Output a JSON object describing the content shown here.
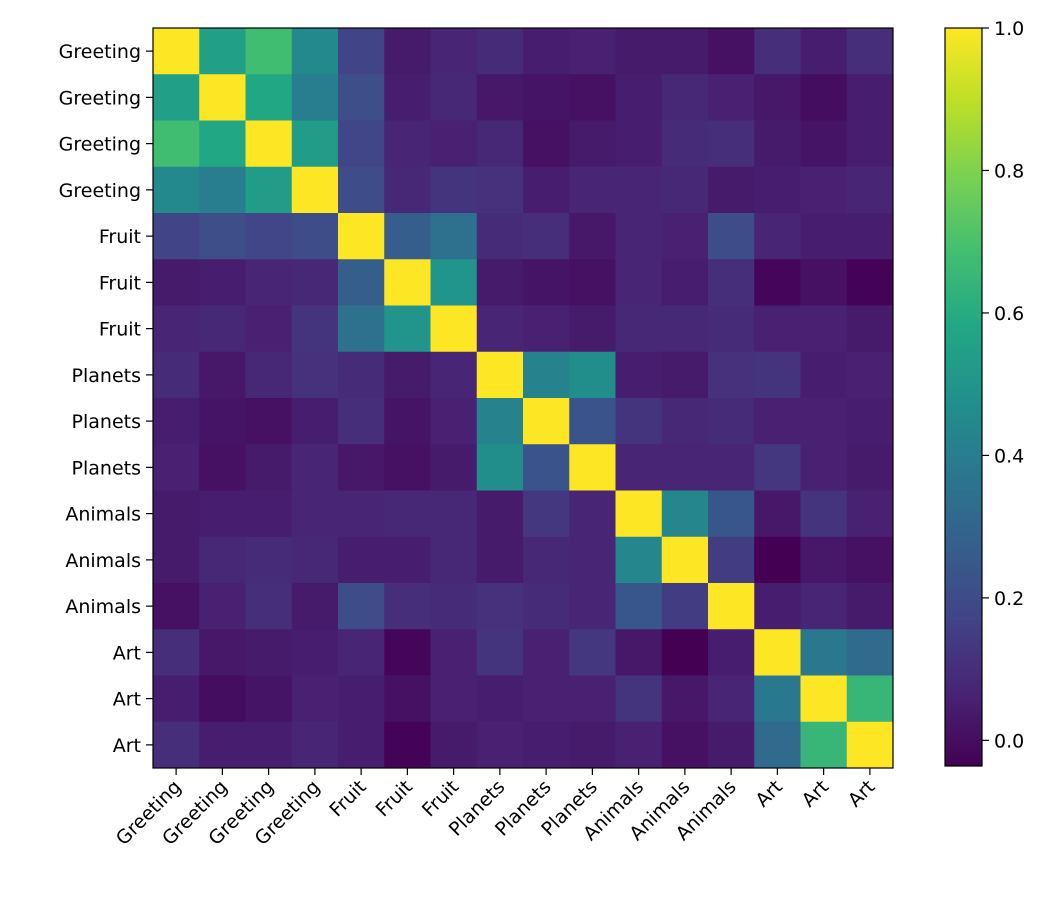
{
  "chart_data": {
    "type": "heatmap",
    "title": "",
    "xlabel": "",
    "ylabel": "",
    "labels": [
      "Greeting",
      "Greeting",
      "Greeting",
      "Greeting",
      "Fruit",
      "Fruit",
      "Fruit",
      "Planets",
      "Planets",
      "Planets",
      "Animals",
      "Animals",
      "Animals",
      "Art",
      "Art",
      "Art"
    ],
    "colormap": "viridis",
    "vmin": -0.036,
    "vmax": 1.0,
    "colorbar_ticks": [
      "0.0",
      "0.2",
      "0.4",
      "0.6",
      "0.8",
      "1.0"
    ],
    "colorbar_tick_values": [
      0.0,
      0.2,
      0.4,
      0.6,
      0.8,
      1.0
    ],
    "matrix": [
      [
        1.0,
        0.55,
        0.68,
        0.45,
        0.17,
        0.04,
        0.07,
        0.09,
        0.05,
        0.06,
        0.04,
        0.04,
        0.01,
        0.1,
        0.05,
        0.1
      ],
      [
        0.55,
        1.0,
        0.58,
        0.4,
        0.21,
        0.05,
        0.08,
        0.03,
        0.02,
        0.01,
        0.05,
        0.08,
        0.06,
        0.03,
        0.0,
        0.05
      ],
      [
        0.68,
        0.58,
        1.0,
        0.53,
        0.18,
        0.07,
        0.06,
        0.08,
        0.01,
        0.04,
        0.05,
        0.09,
        0.1,
        0.04,
        0.02,
        0.05
      ],
      [
        0.45,
        0.4,
        0.53,
        1.0,
        0.2,
        0.08,
        0.12,
        0.11,
        0.05,
        0.07,
        0.07,
        0.08,
        0.04,
        0.05,
        0.06,
        0.07
      ],
      [
        0.17,
        0.21,
        0.18,
        0.2,
        1.0,
        0.27,
        0.35,
        0.09,
        0.1,
        0.03,
        0.07,
        0.06,
        0.2,
        0.07,
        0.05,
        0.05
      ],
      [
        0.04,
        0.05,
        0.07,
        0.08,
        0.27,
        1.0,
        0.5,
        0.04,
        0.02,
        0.01,
        0.07,
        0.05,
        0.1,
        -0.02,
        0.01,
        -0.03
      ],
      [
        0.07,
        0.08,
        0.06,
        0.12,
        0.35,
        0.5,
        1.0,
        0.07,
        0.06,
        0.04,
        0.08,
        0.08,
        0.09,
        0.06,
        0.06,
        0.04
      ],
      [
        0.09,
        0.03,
        0.08,
        0.11,
        0.09,
        0.04,
        0.07,
        1.0,
        0.42,
        0.47,
        0.05,
        0.04,
        0.11,
        0.12,
        0.05,
        0.06
      ],
      [
        0.05,
        0.02,
        0.01,
        0.05,
        0.1,
        0.02,
        0.06,
        0.42,
        1.0,
        0.23,
        0.12,
        0.08,
        0.09,
        0.06,
        0.06,
        0.05
      ],
      [
        0.06,
        0.01,
        0.04,
        0.07,
        0.03,
        0.01,
        0.04,
        0.47,
        0.23,
        1.0,
        0.07,
        0.07,
        0.07,
        0.13,
        0.06,
        0.04
      ],
      [
        0.04,
        0.05,
        0.05,
        0.07,
        0.07,
        0.08,
        0.08,
        0.04,
        0.13,
        0.07,
        1.0,
        0.44,
        0.24,
        0.03,
        0.12,
        0.06
      ],
      [
        0.04,
        0.08,
        0.09,
        0.08,
        0.05,
        0.05,
        0.08,
        0.04,
        0.08,
        0.07,
        0.44,
        1.0,
        0.15,
        -0.04,
        0.03,
        0.01
      ],
      [
        0.01,
        0.06,
        0.1,
        0.04,
        0.2,
        0.1,
        0.09,
        0.11,
        0.09,
        0.07,
        0.24,
        0.15,
        1.0,
        0.05,
        0.07,
        0.04
      ],
      [
        0.1,
        0.03,
        0.04,
        0.05,
        0.07,
        -0.02,
        0.06,
        0.12,
        0.06,
        0.13,
        0.03,
        -0.04,
        0.05,
        1.0,
        0.38,
        0.32
      ],
      [
        0.05,
        0.0,
        0.02,
        0.06,
        0.05,
        0.01,
        0.06,
        0.05,
        0.06,
        0.06,
        0.12,
        0.03,
        0.07,
        0.38,
        1.0,
        0.65
      ],
      [
        0.1,
        0.05,
        0.05,
        0.07,
        0.05,
        -0.03,
        0.04,
        0.06,
        0.05,
        0.04,
        0.06,
        0.01,
        0.04,
        0.32,
        0.65,
        1.0
      ]
    ]
  }
}
